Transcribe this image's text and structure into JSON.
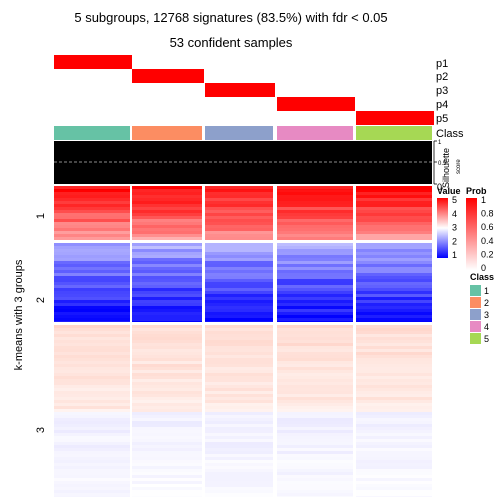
{
  "chart_data": {
    "type": "heatmap",
    "title": "5 subgroups, 12768 signatures (83.5%) with fdr < 0.05",
    "subtitle": "53 confident samples",
    "row_title": "k-means with 3 groups",
    "row_groups": [
      "1",
      "2",
      "3"
    ],
    "group_labels": [
      "p1",
      "p2",
      "p3",
      "p4",
      "p5"
    ],
    "class_label": "Class",
    "silhouette_label": "Silhouette",
    "silhouette_score_label": "score",
    "silhouette_ticks": [
      "1",
      "0.5",
      "0"
    ],
    "silhouette_reference": 0.5,
    "legends": {
      "value": {
        "title": "Value",
        "ticks": [
          "5",
          "4",
          "3",
          "2",
          "1"
        ],
        "colors": [
          "#FF0000",
          "#FFFFFF",
          "#0000FF"
        ]
      },
      "prob": {
        "title": "Prob",
        "ticks": [
          "1",
          "0.8",
          "0.6",
          "0.4",
          "0.2",
          "0"
        ],
        "colors": [
          "#FF0000",
          "#FFFFFF"
        ]
      },
      "class": {
        "title": "Class",
        "items": [
          {
            "label": "1",
            "color": "#66C2A5"
          },
          {
            "label": "2",
            "color": "#FC8D62"
          },
          {
            "label": "3",
            "color": "#8DA0CB"
          },
          {
            "label": "4",
            "color": "#E78AC3"
          },
          {
            "label": "5",
            "color": "#A6D854"
          }
        ]
      }
    }
  }
}
